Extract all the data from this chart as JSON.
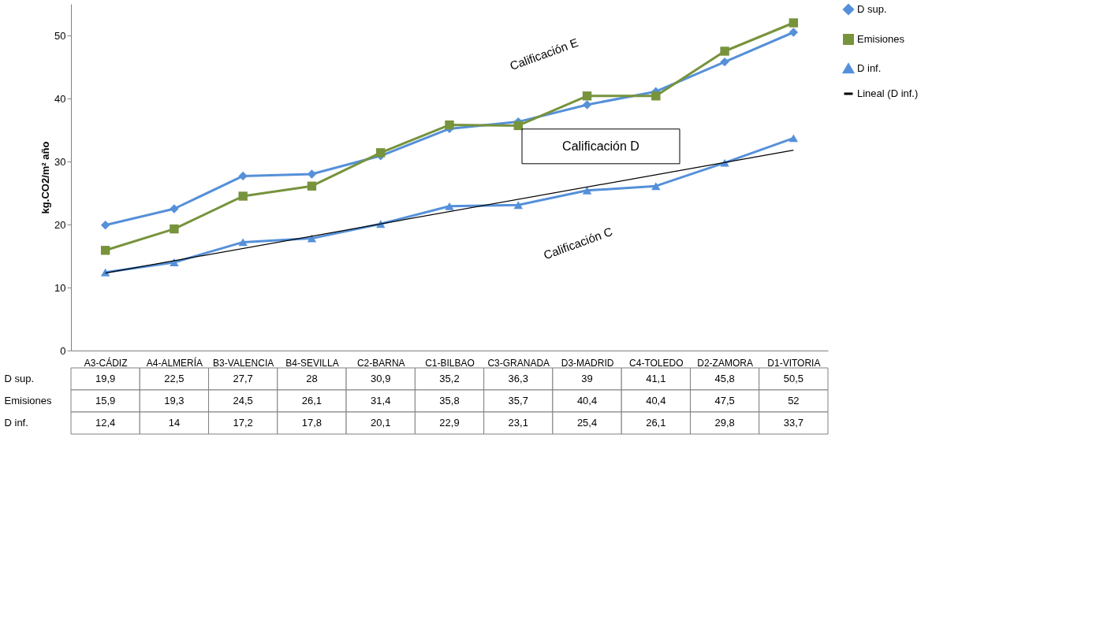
{
  "chart_data": {
    "type": "line",
    "ylabel": "kg.CO2/m² año",
    "categories": [
      "A3-CÁDIZ",
      "A4-ALMERÍA",
      "B3-VALENCIA",
      "B4-SEVILLA",
      "C2-BARNA",
      "C1-BILBAO",
      "C3-GRANADA",
      "D3-MADRID",
      "C4-TOLEDO",
      "D2-ZAMORA",
      "D1-VITORIA"
    ],
    "series": [
      {
        "name": "D sup.",
        "color": "#5590d9",
        "marker": "diamond",
        "values": [
          19.9,
          22.5,
          27.7,
          28,
          30.9,
          35.2,
          36.3,
          39,
          41.1,
          45.8,
          50.5
        ],
        "value_labels": [
          "19,9",
          "22,5",
          "27,7",
          "28",
          "30,9",
          "35,2",
          "36,3",
          "39",
          "41,1",
          "45,8",
          "50,5"
        ]
      },
      {
        "name": "Emisiones",
        "color": "#77933c",
        "marker": "square",
        "values": [
          15.9,
          19.3,
          24.5,
          26.1,
          31.4,
          35.8,
          35.7,
          40.4,
          40.4,
          47.5,
          52
        ],
        "value_labels": [
          "15,9",
          "19,3",
          "24,5",
          "26,1",
          "31,4",
          "35,8",
          "35,7",
          "40,4",
          "40,4",
          "47,5",
          "52"
        ]
      },
      {
        "name": "D inf.",
        "color": "#5590d9",
        "marker": "triangle",
        "values": [
          12.4,
          14,
          17.2,
          17.8,
          20.1,
          22.9,
          23.1,
          25.4,
          26.1,
          29.8,
          33.7
        ],
        "value_labels": [
          "12,4",
          "14",
          "17,2",
          "17,8",
          "20,1",
          "22,9",
          "23,1",
          "25,4",
          "26,1",
          "29,8",
          "33,7"
        ]
      },
      {
        "name": "Lineal (D inf.)",
        "color": "#000000",
        "marker": "none",
        "x": [
          "A3-CÁDIZ",
          "D1-VITORIA"
        ],
        "values": [
          12.3,
          31.8
        ]
      }
    ],
    "annotations": [
      "Calificación E",
      "Calificación D",
      "Calificación C"
    ],
    "ylim": [
      0,
      55
    ],
    "yticks": [
      0,
      10,
      20,
      30,
      40,
      50
    ],
    "grid": false,
    "legend": "right"
  }
}
